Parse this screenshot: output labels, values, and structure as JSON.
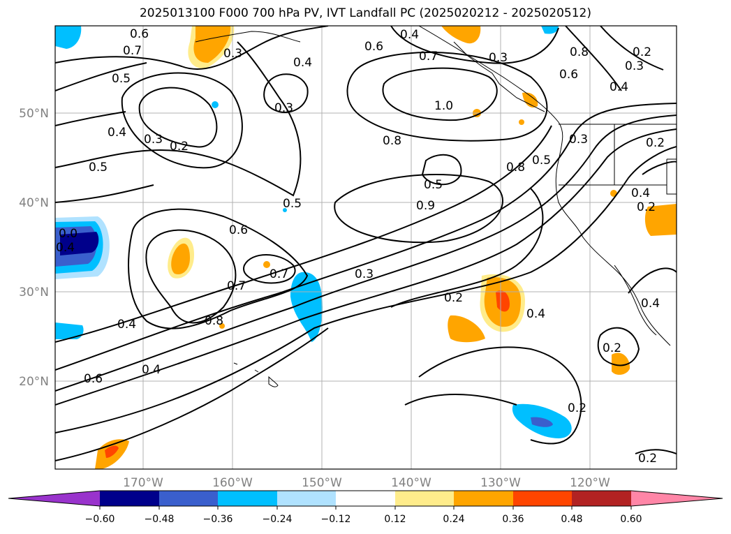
{
  "title": "2025013100 F000 700 hPa PV, IVT Landfall PC (2025020212 - 2025020512)",
  "map": {
    "lat_labels": [
      "50°N",
      "40°N",
      "30°N",
      "20°N"
    ],
    "lon_labels": [
      "170°W",
      "160°W",
      "150°W",
      "140°W",
      "130°W",
      "120°W"
    ],
    "grid": true,
    "coastline_color": "#000000"
  },
  "contour_labels": [
    "0.6",
    "0.7",
    "0.5",
    "0.4",
    "0.3",
    "0.2",
    "0.5",
    "0.3",
    "0.4",
    "0.3",
    "0.4",
    "0.6",
    "0.7",
    "0.3",
    "1.0",
    "0.8",
    "0.8",
    "0.5",
    "0.3",
    "0.2",
    "0.8",
    "0.6",
    "0.2",
    "0.3",
    "0.4",
    "0.2",
    "0.5",
    "0.9",
    "0.5",
    "0.6",
    "0.7",
    "0.7",
    "0.8",
    "0.3",
    "0.2",
    "0.4",
    "0.4",
    "0.6",
    "0.4",
    "0.2",
    "0.2",
    "0.2",
    "0.4",
    "0.4",
    "0.0",
    "0.4"
  ],
  "colorbar": {
    "tick_labels": [
      "−0.60",
      "−0.48",
      "−0.36",
      "−0.24",
      "−0.12",
      "0.12",
      "0.24",
      "0.36",
      "0.48",
      "0.60"
    ],
    "colors": [
      "#9933cc",
      "#00008b",
      "#3a5fcd",
      "#00bfff",
      "#b0e2ff",
      "#ffffff",
      "#ffec8b",
      "#ffa500",
      "#ff4500",
      "#b22222",
      "#ff86a7"
    ]
  }
}
